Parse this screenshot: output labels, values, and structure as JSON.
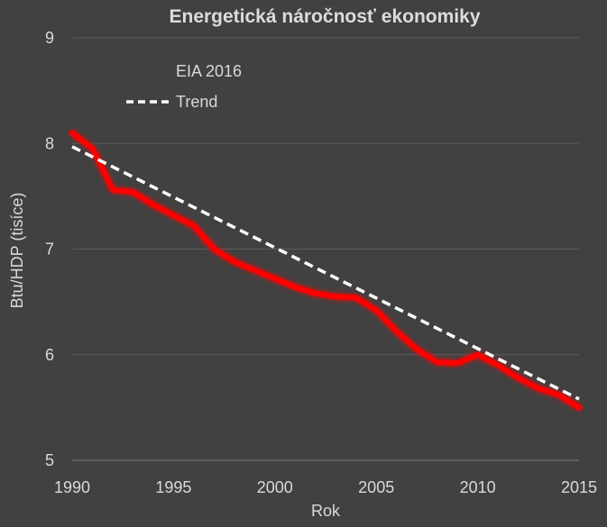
{
  "chart_data": {
    "type": "line",
    "title": "Energetická náročnosť  ekonomiky",
    "xlabel": "Rok",
    "ylabel": "Btu/HDP  (tisíce)",
    "xlim": [
      1990,
      2015
    ],
    "ylim": [
      5,
      9
    ],
    "x_ticks": [
      "1990",
      "1995",
      "2000",
      "2005",
      "2010",
      "2015"
    ],
    "y_ticks": [
      "5",
      "6",
      "7",
      "8",
      "9"
    ],
    "grid": "horizontal",
    "legend_position": "top-left",
    "series": [
      {
        "name": "EIA 2016",
        "color": "#ff0000",
        "style": "solid",
        "x": [
          1990,
          1991,
          1992,
          1993,
          1994,
          1995,
          1996,
          1997,
          1998,
          1999,
          2000,
          2001,
          2002,
          2003,
          2004,
          2005,
          2006,
          2007,
          2008,
          2009,
          2010,
          2011,
          2012,
          2013,
          2014,
          2015
        ],
        "y": [
          8.1,
          7.95,
          7.56,
          7.54,
          7.42,
          7.32,
          7.22,
          7.0,
          6.88,
          6.8,
          6.72,
          6.64,
          6.58,
          6.55,
          6.54,
          6.42,
          6.22,
          6.05,
          5.93,
          5.92,
          6.0,
          5.9,
          5.78,
          5.68,
          5.62,
          5.5
        ]
      },
      {
        "name": "Trend",
        "color": "#ffffff",
        "style": "dashed",
        "x": [
          1990,
          2015
        ],
        "y": [
          7.97,
          5.58
        ]
      }
    ]
  }
}
